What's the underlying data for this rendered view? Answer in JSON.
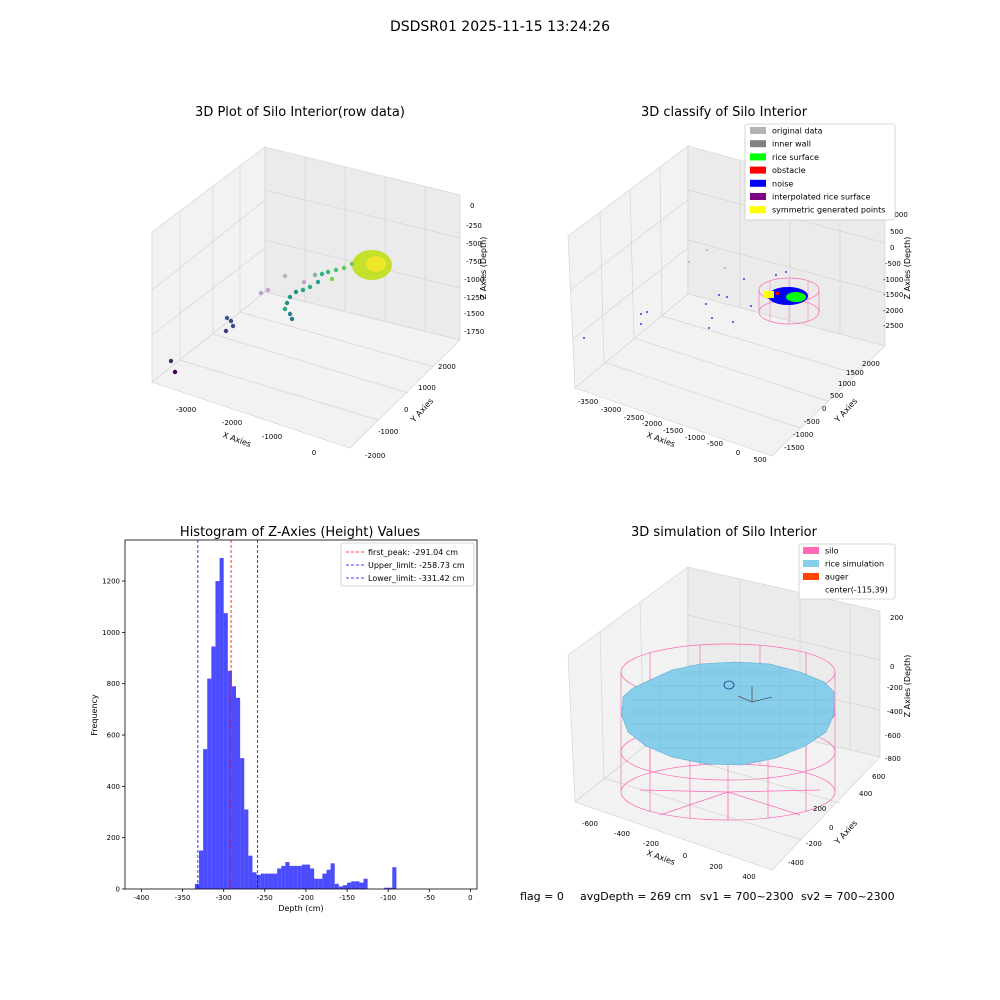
{
  "suptitle": "DSDSR01 2025-11-15 13:24:26",
  "panels": {
    "raw": {
      "title": "3D Plot of Silo Interior(row data)",
      "xlabel": "X Axies",
      "ylabel": "Y Axies",
      "zlabel": "Z Axies (Depth)",
      "xticks": [
        "-3000",
        "-2000",
        "-1000",
        "0"
      ],
      "yticks": [
        "-2000",
        "-1000",
        "0",
        "1000",
        "2000"
      ],
      "zticks": [
        "0",
        "-250",
        "-500",
        "-750",
        "-1000",
        "-1250",
        "-1500",
        "-1750"
      ]
    },
    "classify": {
      "title": "3D classify of Silo Interior",
      "xlabel": "X Axies",
      "ylabel": "Y Axies",
      "zlabel": "Z Axies (Depth)",
      "xticks": [
        "-3500",
        "-3000",
        "-2500",
        "-2000",
        "-1500",
        "-1000",
        "-500",
        "0",
        "500"
      ],
      "yticks": [
        "-1500",
        "-1000",
        "-500",
        "0",
        "500",
        "1000",
        "1500",
        "2000"
      ],
      "zticks": [
        "1000",
        "500",
        "0",
        "-500",
        "-1000",
        "-1500",
        "-2000",
        "-2500"
      ],
      "legend": [
        {
          "label": "original data",
          "color": "#b3b3b3"
        },
        {
          "label": "inner wall",
          "color": "#808080"
        },
        {
          "label": "rice surface",
          "color": "#00ff00"
        },
        {
          "label": "obstacle",
          "color": "#ff0000"
        },
        {
          "label": "noise",
          "color": "#0000ff"
        },
        {
          "label": "interpolated rice surface",
          "color": "#800080"
        },
        {
          "label": "symmetric generated points",
          "color": "#ffff00"
        }
      ]
    },
    "simulation": {
      "title": "3D simulation of Silo Interior",
      "xlabel": "X Axies",
      "ylabel": "Y Axies",
      "zlabel": "Z Axies (Depth)",
      "xticks": [
        "-600",
        "-400",
        "-200",
        "0",
        "200",
        "400"
      ],
      "yticks": [
        "-400",
        "-200",
        "0",
        "200",
        "400",
        "600"
      ],
      "zticks": [
        "200",
        "0",
        "-200",
        "-400",
        "-600",
        "-800"
      ],
      "legend": [
        {
          "label": "silo",
          "color": "#ff69b4"
        },
        {
          "label": "rice simulation",
          "color": "#87ceeb"
        },
        {
          "label": "auger",
          "color": "#ff4500"
        },
        {
          "label": "center(-115,39)",
          "color": ""
        }
      ]
    }
  },
  "status": {
    "flag": "flag = 0",
    "avg": "avgDepth = 269 cm",
    "sv1": "sv1 = 700~2300",
    "sv2": "sv2 = 700~2300"
  },
  "chart_data": {
    "type": "bar",
    "title": "Histogram of Z-Axies (Height) Values",
    "xlabel": "Depth (cm)",
    "ylabel": "Frequency",
    "xlim": [
      -420,
      8
    ],
    "ylim": [
      0,
      1360
    ],
    "xticks": [
      -400,
      -350,
      -300,
      -250,
      -200,
      -150,
      -100,
      -50,
      0
    ],
    "yticks": [
      0,
      200,
      400,
      600,
      800,
      1000,
      1200
    ],
    "bin_width": 5,
    "bin_starts": [
      -335,
      -330,
      -325,
      -320,
      -315,
      -310,
      -305,
      -300,
      -295,
      -290,
      -285,
      -280,
      -275,
      -270,
      -265,
      -260,
      -255,
      -250,
      -245,
      -240,
      -235,
      -230,
      -225,
      -220,
      -215,
      -210,
      -205,
      -200,
      -195,
      -190,
      -185,
      -180,
      -175,
      -170,
      -165,
      -160,
      -155,
      -150,
      -145,
      -140,
      -135,
      -130,
      -125,
      -120,
      -115,
      -110,
      -105,
      -100,
      -95,
      -90,
      -85,
      -80,
      -75,
      -70,
      -65,
      -60,
      -55,
      -50,
      -45,
      -40,
      -35,
      -30,
      -25,
      -20,
      -15,
      -10,
      -5,
      0
    ],
    "values": [
      20,
      150,
      545,
      820,
      945,
      1200,
      1290,
      1075,
      850,
      790,
      745,
      510,
      310,
      130,
      65,
      55,
      60,
      60,
      60,
      60,
      80,
      90,
      105,
      90,
      90,
      90,
      95,
      95,
      80,
      40,
      40,
      60,
      75,
      100,
      20,
      10,
      15,
      25,
      30,
      30,
      25,
      40,
      0,
      0,
      0,
      0,
      5,
      5,
      85,
      0,
      0,
      0,
      0,
      0,
      0,
      0,
      0,
      0,
      0,
      0,
      0,
      0,
      0,
      0,
      0,
      0,
      0,
      0
    ],
    "vlines": [
      {
        "label": "first_peak: -291.04 cm",
        "x": -291.04,
        "color": "#ff0000"
      },
      {
        "label": "Upper_limit: -258.73 cm",
        "x": -258.73,
        "color": "#0000ff"
      },
      {
        "label": "Lower_limit: -331.42 cm",
        "x": -331.42,
        "color": "#0000ff"
      }
    ],
    "bar_color": "#0000ff"
  }
}
